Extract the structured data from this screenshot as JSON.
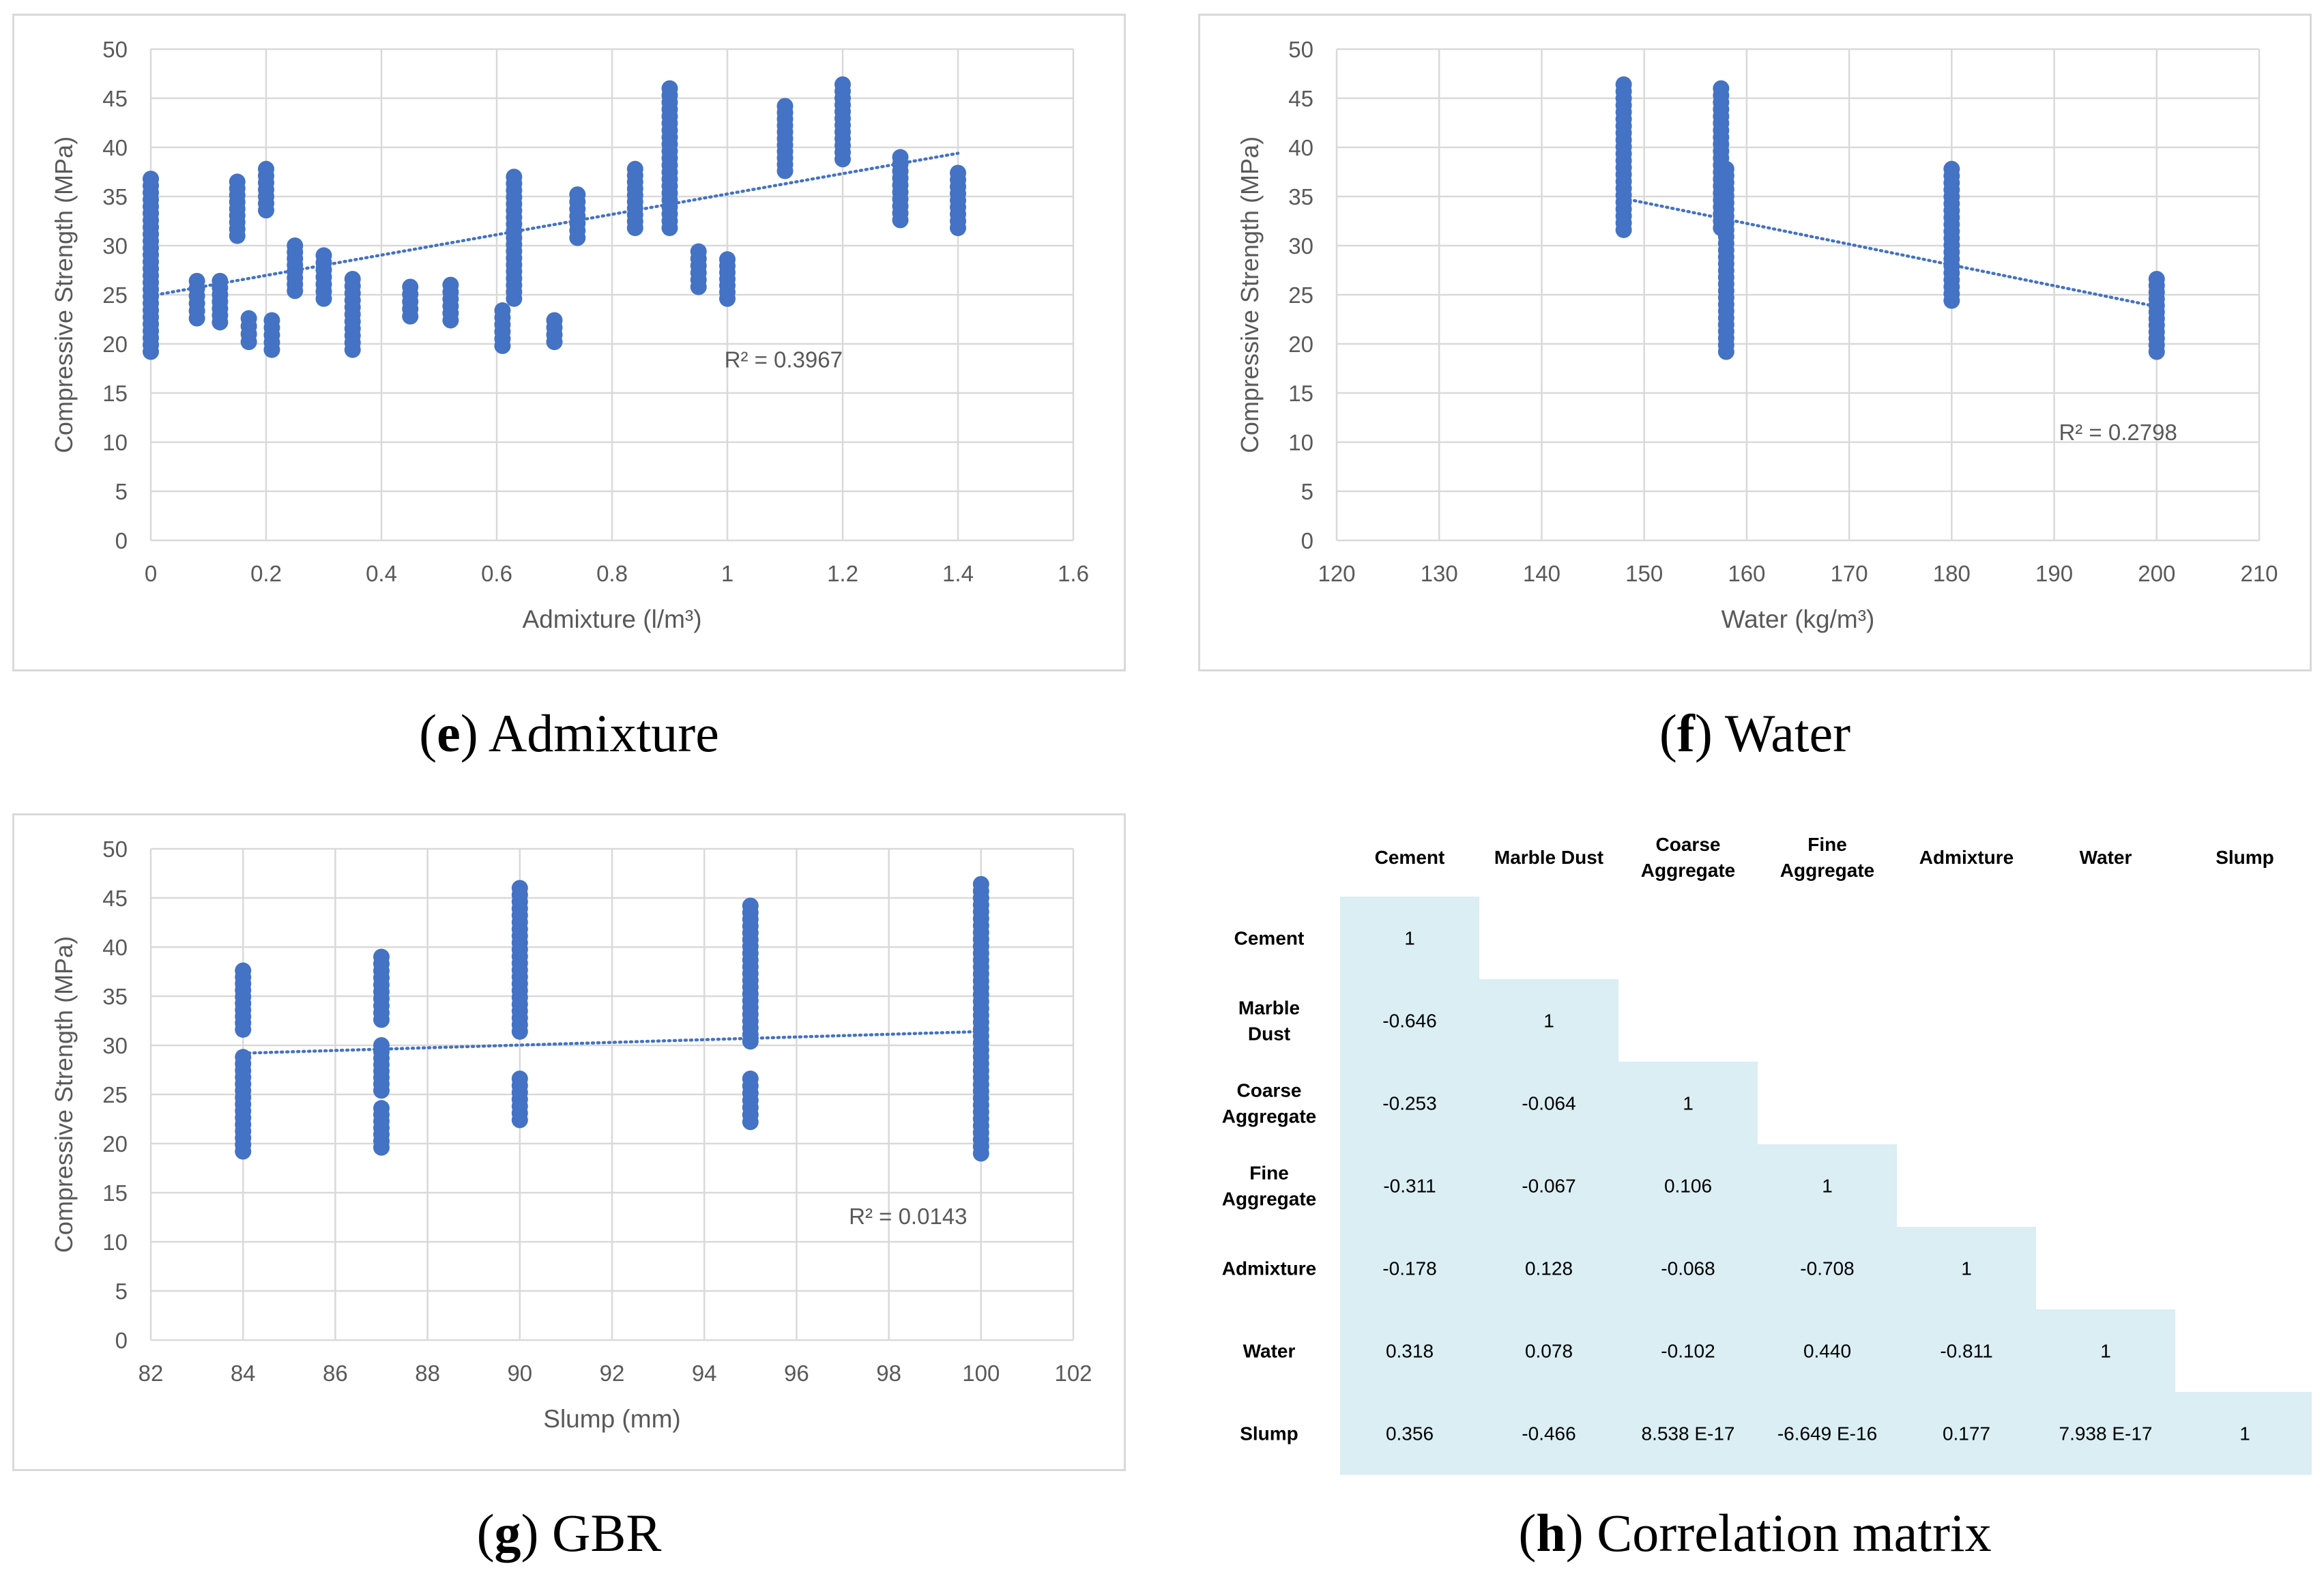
{
  "captions": {
    "e": {
      "letter": "e",
      "text": "Admixture"
    },
    "f": {
      "letter": "f",
      "text": "Water"
    },
    "g": {
      "letter": "g",
      "text": "GBR"
    },
    "h": {
      "letter": "h",
      "text": "Correlation matrix"
    }
  },
  "chart_data": [
    {
      "id": "admixture",
      "type": "scatter",
      "title": "",
      "xlabel": "Admixture (l/m³)",
      "ylabel": "Compressive Strength (MPa)",
      "xlim": [
        0,
        1.6
      ],
      "ylim": [
        0,
        50
      ],
      "xticks": [
        0,
        0.2,
        0.4,
        0.6,
        0.8,
        1,
        1.2,
        1.4,
        1.6
      ],
      "xtick_labels": [
        "0",
        "0.2",
        "0.4",
        "0.6",
        "0.8",
        "1",
        "1.2",
        "1.4",
        "1.6"
      ],
      "yticks": [
        0,
        5,
        10,
        15,
        20,
        25,
        30,
        35,
        40,
        45,
        50
      ],
      "grid": true,
      "point_color": "#4472c4",
      "clusters": [
        {
          "x": 0,
          "ymin": 19.2,
          "ymax": 36.8
        },
        {
          "x": 0.08,
          "ymin": 22.6,
          "ymax": 26.4
        },
        {
          "x": 0.12,
          "ymin": 22.2,
          "ymax": 26.4
        },
        {
          "x": 0.15,
          "ymin": 31,
          "ymax": 36.5
        },
        {
          "x": 0.17,
          "ymin": 20.2,
          "ymax": 22.6
        },
        {
          "x": 0.21,
          "ymin": 19.4,
          "ymax": 22.4
        },
        {
          "x": 0.2,
          "ymin": 33.6,
          "ymax": 37.8
        },
        {
          "x": 0.25,
          "ymin": 25.4,
          "ymax": 30
        },
        {
          "x": 0.3,
          "ymin": 24.6,
          "ymax": 29
        },
        {
          "x": 0.35,
          "ymin": 19.4,
          "ymax": 26.6
        },
        {
          "x": 0.45,
          "ymin": 22.8,
          "ymax": 25.8
        },
        {
          "x": 0.52,
          "ymin": 22.4,
          "ymax": 26
        },
        {
          "x": 0.61,
          "ymin": 19.8,
          "ymax": 23.4
        },
        {
          "x": 0.63,
          "ymin": 24.6,
          "ymax": 37
        },
        {
          "x": 0.7,
          "ymin": 20.2,
          "ymax": 22.4
        },
        {
          "x": 0.74,
          "ymin": 30.8,
          "ymax": 35.2
        },
        {
          "x": 0.84,
          "ymin": 31.8,
          "ymax": 37.8
        },
        {
          "x": 0.9,
          "ymin": 31.8,
          "ymax": 46
        },
        {
          "x": 0.95,
          "ymin": 25.8,
          "ymax": 29.4
        },
        {
          "x": 1,
          "ymin": 24.6,
          "ymax": 28.6
        },
        {
          "x": 1.1,
          "ymin": 37.6,
          "ymax": 44.2
        },
        {
          "x": 1.2,
          "ymin": 38.8,
          "ymax": 46.4
        },
        {
          "x": 1.3,
          "ymin": 32.6,
          "ymax": 39
        },
        {
          "x": 1.4,
          "ymin": 31.8,
          "ymax": 37.4
        }
      ],
      "trendline": {
        "x": [
          0,
          1.4
        ],
        "y": [
          24.9,
          39.4
        ]
      },
      "r2_label": "R² = 0.3967",
      "r2_anchor": {
        "x": 1.2,
        "y": 17.6
      }
    },
    {
      "id": "water",
      "type": "scatter",
      "title": "",
      "xlabel": "Water (kg/m³)",
      "ylabel": "Compressive Strength (MPa)",
      "xlim": [
        120,
        210
      ],
      "ylim": [
        0,
        50
      ],
      "xticks": [
        120,
        130,
        140,
        150,
        160,
        170,
        180,
        190,
        200,
        210
      ],
      "xtick_labels": [
        "120",
        "130",
        "140",
        "150",
        "160",
        "170",
        "180",
        "190",
        "200",
        "210"
      ],
      "yticks": [
        0,
        5,
        10,
        15,
        20,
        25,
        30,
        35,
        40,
        45,
        50
      ],
      "grid": true,
      "point_color": "#4472c4",
      "clusters": [
        {
          "x": 148,
          "ymin": 31.6,
          "ymax": 46.4
        },
        {
          "x": 157.5,
          "ymin": 31.8,
          "ymax": 46
        },
        {
          "x": 158,
          "ymin": 19.2,
          "ymax": 37.8
        },
        {
          "x": 180,
          "ymin": 24.4,
          "ymax": 37.8
        },
        {
          "x": 200,
          "ymin": 19.2,
          "ymax": 26.6
        }
      ],
      "trendline": {
        "x": [
          148,
          200
        ],
        "y": [
          34.8,
          23.8
        ]
      },
      "r2_label": "R² = 0.2798",
      "r2_anchor": {
        "x": 202,
        "y": 10.2
      }
    },
    {
      "id": "slump",
      "type": "scatter",
      "title": "",
      "xlabel": "Slump (mm)",
      "ylabel": "Compressive Strength (MPa)",
      "xlim": [
        82,
        102
      ],
      "ylim": [
        0,
        50
      ],
      "xticks": [
        82,
        84,
        86,
        88,
        90,
        92,
        94,
        96,
        98,
        100,
        102
      ],
      "xtick_labels": [
        "82",
        "84",
        "86",
        "88",
        "90",
        "92",
        "94",
        "96",
        "98",
        "100",
        "102"
      ],
      "yticks": [
        0,
        5,
        10,
        15,
        20,
        25,
        30,
        35,
        40,
        45,
        50
      ],
      "grid": true,
      "point_color": "#4472c4",
      "clusters": [
        {
          "x": 84,
          "ymin": 19.2,
          "ymax": 28.8
        },
        {
          "x": 84,
          "ymin": 31.6,
          "ymax": 37.6
        },
        {
          "x": 87,
          "ymin": 19.6,
          "ymax": 23.6
        },
        {
          "x": 87,
          "ymin": 25.4,
          "ymax": 30
        },
        {
          "x": 87,
          "ymin": 32.6,
          "ymax": 39
        },
        {
          "x": 90,
          "ymin": 22.4,
          "ymax": 26.6
        },
        {
          "x": 90,
          "ymin": 31.4,
          "ymax": 46
        },
        {
          "x": 95,
          "ymin": 22.2,
          "ymax": 26.6
        },
        {
          "x": 95,
          "ymin": 30.4,
          "ymax": 44.2
        },
        {
          "x": 100,
          "ymin": 19,
          "ymax": 46.4
        }
      ],
      "trendline": {
        "x": [
          84,
          100
        ],
        "y": [
          29.2,
          31.4
        ]
      },
      "r2_label": "R² = 0.0143",
      "r2_anchor": {
        "x": 99.7,
        "y": 11.8
      }
    },
    {
      "id": "correlation",
      "type": "table",
      "title": "Correlation matrix",
      "columns": [
        "Cement",
        "Marble Dust",
        "Coarse Aggregate",
        "Fine Aggregate",
        "Admixture",
        "Water",
        "Slump"
      ],
      "rows": [
        {
          "label": "Cement",
          "values": [
            "1"
          ]
        },
        {
          "label": "Marble Dust",
          "values": [
            "-0.646",
            "1"
          ]
        },
        {
          "label": "Coarse Aggregate",
          "values": [
            "-0.253",
            "-0.064",
            "1"
          ]
        },
        {
          "label": "Fine Aggregate",
          "values": [
            "-0.311",
            "-0.067",
            "0.106",
            "1"
          ]
        },
        {
          "label": "Admixture",
          "values": [
            "-0.178",
            "0.128",
            "-0.068",
            "-0.708",
            "1"
          ]
        },
        {
          "label": "Water",
          "values": [
            "0.318",
            "0.078",
            "-0.102",
            "0.440",
            "-0.811",
            "1"
          ]
        },
        {
          "label": "Slump",
          "values": [
            "0.356",
            "-0.466",
            "8.538 E-17",
            "-6.649 E-16",
            "0.177",
            "7.938 E-17",
            "1"
          ]
        }
      ],
      "cell_color": "#daeef3"
    }
  ]
}
